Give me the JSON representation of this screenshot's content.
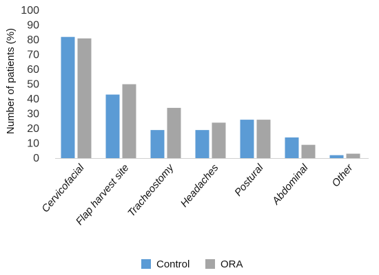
{
  "chart_data": {
    "type": "bar",
    "categories": [
      "Cervicofacial",
      "Flap harvest site",
      "Tracheostomy",
      "Headaches",
      "Postural",
      "Abdominal",
      "Other"
    ],
    "series": [
      {
        "name": "Control",
        "values": [
          82,
          43,
          19,
          19,
          26,
          14,
          2
        ],
        "color": "#5b9bd5"
      },
      {
        "name": "ORA",
        "values": [
          81,
          50,
          34,
          24,
          26,
          9,
          3
        ],
        "color": "#a5a5a5"
      }
    ],
    "ylabel": "Number of patients (%)",
    "xlabel": "",
    "ylim": [
      0,
      100
    ],
    "yticks": [
      0,
      10,
      20,
      30,
      40,
      50,
      60,
      70,
      80,
      90,
      100
    ],
    "grid": false,
    "legend_position": "bottom"
  }
}
